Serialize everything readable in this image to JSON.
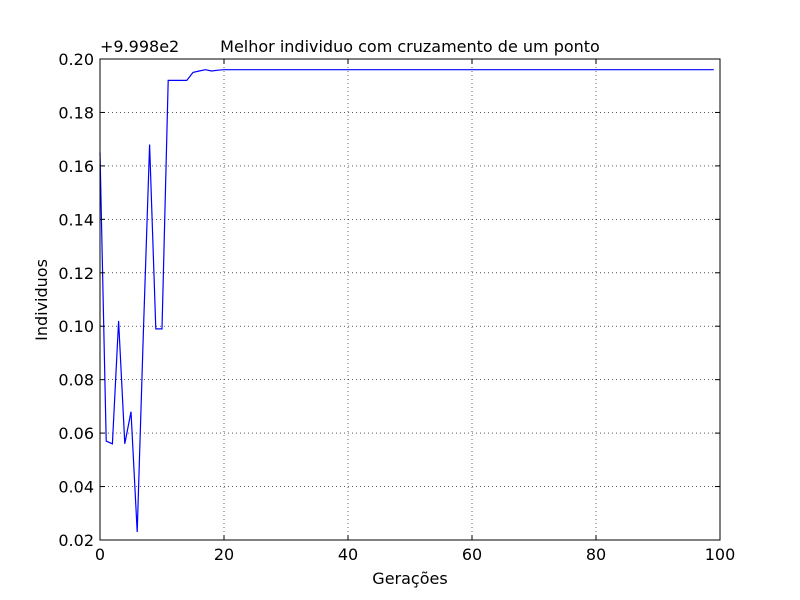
{
  "chart_data": {
    "type": "line",
    "title": "Melhor individuo com cruzamento de um ponto",
    "xlabel": "Gerações",
    "ylabel": "Individuos",
    "offset_label": "+9.998e2",
    "xlim": [
      0,
      100
    ],
    "ylim": [
      0.02,
      0.2
    ],
    "xticks": [
      0,
      20,
      40,
      60,
      80,
      100
    ],
    "yticks": [
      0.02,
      0.04,
      0.06,
      0.08,
      0.1,
      0.12,
      0.14,
      0.16,
      0.18,
      0.2
    ],
    "xtick_labels": [
      "0",
      "20",
      "40",
      "60",
      "80",
      "100"
    ],
    "ytick_labels": [
      "0.02",
      "0.04",
      "0.06",
      "0.08",
      "0.10",
      "0.12",
      "0.14",
      "0.16",
      "0.18",
      "0.20"
    ],
    "grid": true,
    "line_color": "#0000ff",
    "series": [
      {
        "x": [
          0,
          1,
          2,
          3,
          4,
          5,
          6,
          7,
          8,
          9,
          10,
          11,
          12,
          13,
          14,
          15,
          16,
          17,
          18,
          19,
          20,
          99
        ],
        "values": [
          0.165,
          0.057,
          0.056,
          0.102,
          0.056,
          0.068,
          0.023,
          0.098,
          0.168,
          0.099,
          0.099,
          0.192,
          0.192,
          0.192,
          0.192,
          0.195,
          0.1955,
          0.196,
          0.1955,
          0.1958,
          0.196,
          0.196
        ]
      }
    ]
  }
}
